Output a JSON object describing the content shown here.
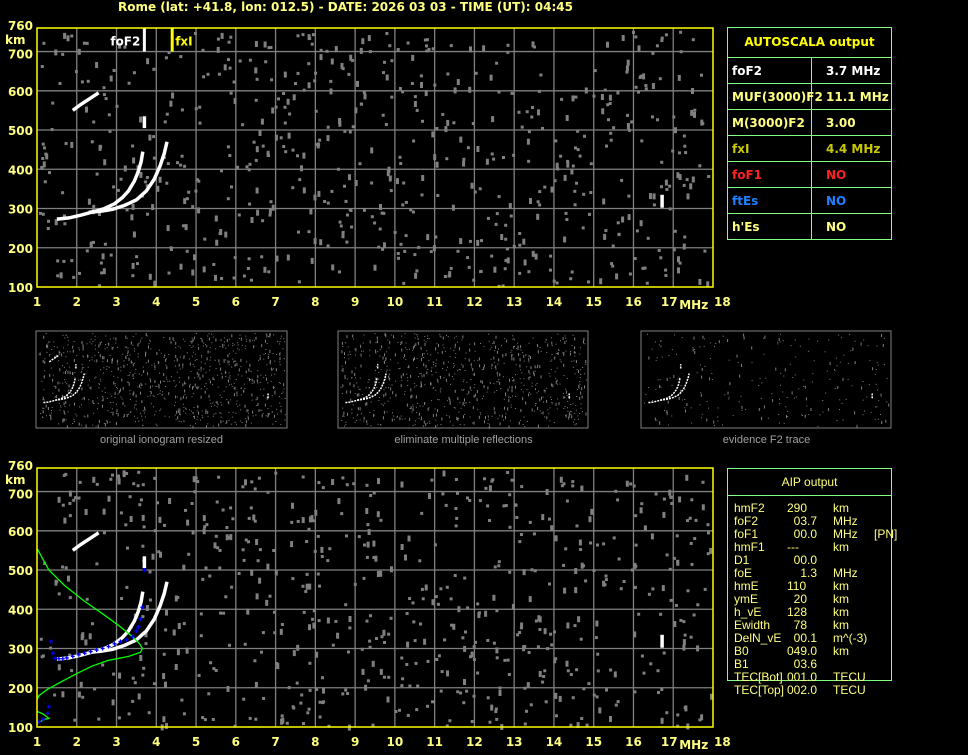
{
  "header": {
    "title": "Rome (lat: +41.8, lon: 012.5) - DATE: 2026 03 03 - TIME (UT): 04:45"
  },
  "colors": {
    "border": "#ffff00",
    "grid": "#808080",
    "tick_label": "#ffff80",
    "trace": "#ffffff",
    "noise": "#808080",
    "profile": "#00ff00",
    "aip_points": "#0000ff",
    "table_border": "#80ff80"
  },
  "autoscala": {
    "title": "AUTOSCALA output",
    "rows": [
      {
        "label": "foF2",
        "value": "3.7 MHz",
        "color": "#ffffff"
      },
      {
        "label": "MUF(3000)F2",
        "value": "11.1 MHz",
        "color": "#ffff80"
      },
      {
        "label": "M(3000)F2",
        "value": "3.00",
        "color": "#ffff80"
      },
      {
        "label": "fxI",
        "value": "4.4 MHz",
        "color": "#c8c800"
      },
      {
        "label": "foF1",
        "value": "NO",
        "color": "#ff2020"
      },
      {
        "label": "ftEs",
        "value": "NO",
        "color": "#2080ff"
      },
      {
        "label": "h'Es",
        "value": "NO",
        "color": "#ffff80"
      }
    ]
  },
  "aip": {
    "title": "AIP output",
    "rows": [
      {
        "label": "hmF2",
        "value": "290",
        "unit": "km",
        "extra": ""
      },
      {
        "label": "foF2",
        "value": "  03.7",
        "unit": "MHz",
        "extra": ""
      },
      {
        "label": "foF1",
        "value": "  00.0",
        "unit": "MHz",
        "extra": "[PN]"
      },
      {
        "label": "hmF1",
        "value": "---",
        "unit": "km",
        "extra": ""
      },
      {
        "label": "D1",
        "value": "  00.0",
        "unit": "",
        "extra": ""
      },
      {
        "label": "foE",
        "value": "    1.3",
        "unit": "MHz",
        "extra": ""
      },
      {
        "label": "hmE",
        "value": "110",
        "unit": "km",
        "extra": ""
      },
      {
        "label": "ymE",
        "value": "  20",
        "unit": "km",
        "extra": ""
      },
      {
        "label": "h_vE",
        "value": "128",
        "unit": "km",
        "extra": ""
      },
      {
        "label": "Ewidth",
        "value": "  78",
        "unit": "km",
        "extra": ""
      },
      {
        "label": "DelN_vE",
        "value": "  00.1",
        "unit": "m^(-3)",
        "extra": ""
      },
      {
        "label": "B0",
        "value": "049.0",
        "unit": "km",
        "extra": ""
      },
      {
        "label": "B1",
        "value": "  03.6",
        "unit": "",
        "extra": ""
      },
      {
        "label": "TEC[Bot]",
        "value": "001.0",
        "unit": "TECU",
        "extra": ""
      },
      {
        "label": "TEC[Top]",
        "value": "002.0",
        "unit": "TECU",
        "extra": ""
      }
    ]
  },
  "thumbnails": [
    {
      "caption": "original ionogram resized"
    },
    {
      "caption": "eliminate multiple reflections"
    },
    {
      "caption": "evidence F2 trace"
    }
  ],
  "chart_data": [
    {
      "type": "scatter",
      "name": "autoscala-ionogram",
      "xlabel": "MHz",
      "ylabel": "km",
      "xlim": [
        1,
        18
      ],
      "ylim": [
        100,
        760
      ],
      "xticks": [
        "1",
        "2",
        "3",
        "4",
        "5",
        "6",
        "7",
        "8",
        "9",
        "10",
        "11",
        "12",
        "13",
        "14",
        "15",
        "16",
        "17",
        "18"
      ],
      "yticks": [
        "100",
        "200",
        "300",
        "400",
        "500",
        "600",
        "700",
        "760"
      ],
      "grid": true,
      "traces": {
        "o_trace": [
          [
            1.5,
            273
          ],
          [
            1.8,
            276
          ],
          [
            2.1,
            283
          ],
          [
            2.4,
            291
          ],
          [
            2.7,
            300
          ],
          [
            2.95,
            312
          ],
          [
            3.15,
            328
          ],
          [
            3.3,
            345
          ],
          [
            3.45,
            370
          ],
          [
            3.55,
            395
          ],
          [
            3.62,
            420
          ],
          [
            3.66,
            445
          ]
        ],
        "o_fragment": [
          [
            3.7,
            505
          ],
          [
            3.7,
            535
          ]
        ],
        "x_trace": [
          [
            2.3,
            290
          ],
          [
            2.6,
            293
          ],
          [
            2.9,
            298
          ],
          [
            3.2,
            308
          ],
          [
            3.5,
            322
          ],
          [
            3.75,
            345
          ],
          [
            3.95,
            375
          ],
          [
            4.1,
            410
          ],
          [
            4.2,
            440
          ],
          [
            4.27,
            470
          ]
        ],
        "multiple_fragment": [
          [
            1.9,
            550
          ],
          [
            2.1,
            565
          ],
          [
            2.4,
            585
          ],
          [
            2.55,
            595
          ]
        ],
        "spike": [
          [
            16.72,
            302
          ],
          [
            16.72,
            335
          ]
        ]
      },
      "markers": [
        {
          "label": "foF2",
          "freq": 3.7,
          "color": "#ffffff"
        },
        {
          "label": "fxI",
          "freq": 4.4,
          "color": "#ffff00"
        }
      ]
    },
    {
      "type": "scatter",
      "name": "aip-ionogram",
      "xlabel": "MHz",
      "ylabel": "km",
      "xlim": [
        1,
        18
      ],
      "ylim": [
        100,
        760
      ],
      "xticks": [
        "1",
        "2",
        "3",
        "4",
        "5",
        "6",
        "7",
        "8",
        "9",
        "10",
        "11",
        "12",
        "13",
        "14",
        "15",
        "16",
        "17",
        "18"
      ],
      "yticks": [
        "100",
        "200",
        "300",
        "400",
        "500",
        "600",
        "700",
        "760"
      ],
      "grid": true,
      "profile": [
        [
          1,
          555
        ],
        [
          1.3,
          500
        ],
        [
          1.7,
          460
        ],
        [
          2.2,
          420
        ],
        [
          2.7,
          385
        ],
        [
          3.1,
          355
        ],
        [
          3.4,
          330
        ],
        [
          3.58,
          312
        ],
        [
          3.65,
          300
        ],
        [
          3.6,
          290
        ],
        [
          3.3,
          280
        ],
        [
          2.8,
          270
        ],
        [
          2.4,
          256
        ],
        [
          2.0,
          236
        ],
        [
          1.6,
          215
        ],
        [
          1.25,
          195
        ],
        [
          1.05,
          180
        ],
        [
          1,
          170
        ]
      ],
      "profile_e": [
        [
          1,
          140
        ],
        [
          1.15,
          133
        ],
        [
          1.3,
          122
        ],
        [
          1.2,
          120
        ],
        [
          1.05,
          112
        ],
        [
          1,
          110
        ]
      ],
      "aip_points": [
        [
          1.45,
          275
        ],
        [
          1.55,
          274
        ],
        [
          1.65,
          274
        ],
        [
          1.75,
          276
        ],
        [
          1.9,
          280
        ],
        [
          2.05,
          284
        ],
        [
          2.2,
          288
        ],
        [
          2.35,
          292
        ],
        [
          2.5,
          296
        ],
        [
          2.65,
          300
        ],
        [
          2.8,
          305
        ],
        [
          2.95,
          312
        ],
        [
          3.1,
          318
        ],
        [
          3.25,
          322
        ],
        [
          3.4,
          330
        ],
        [
          3.5,
          345
        ],
        [
          3.55,
          355
        ],
        [
          3.6,
          375
        ],
        [
          3.65,
          405
        ],
        [
          3.7,
          500
        ],
        [
          1.35,
          318
        ],
        [
          1.4,
          288
        ],
        [
          1.3,
          152
        ],
        [
          1.27,
          135
        ],
        [
          1.15,
          120
        ],
        [
          1.05,
          113
        ]
      ]
    }
  ]
}
